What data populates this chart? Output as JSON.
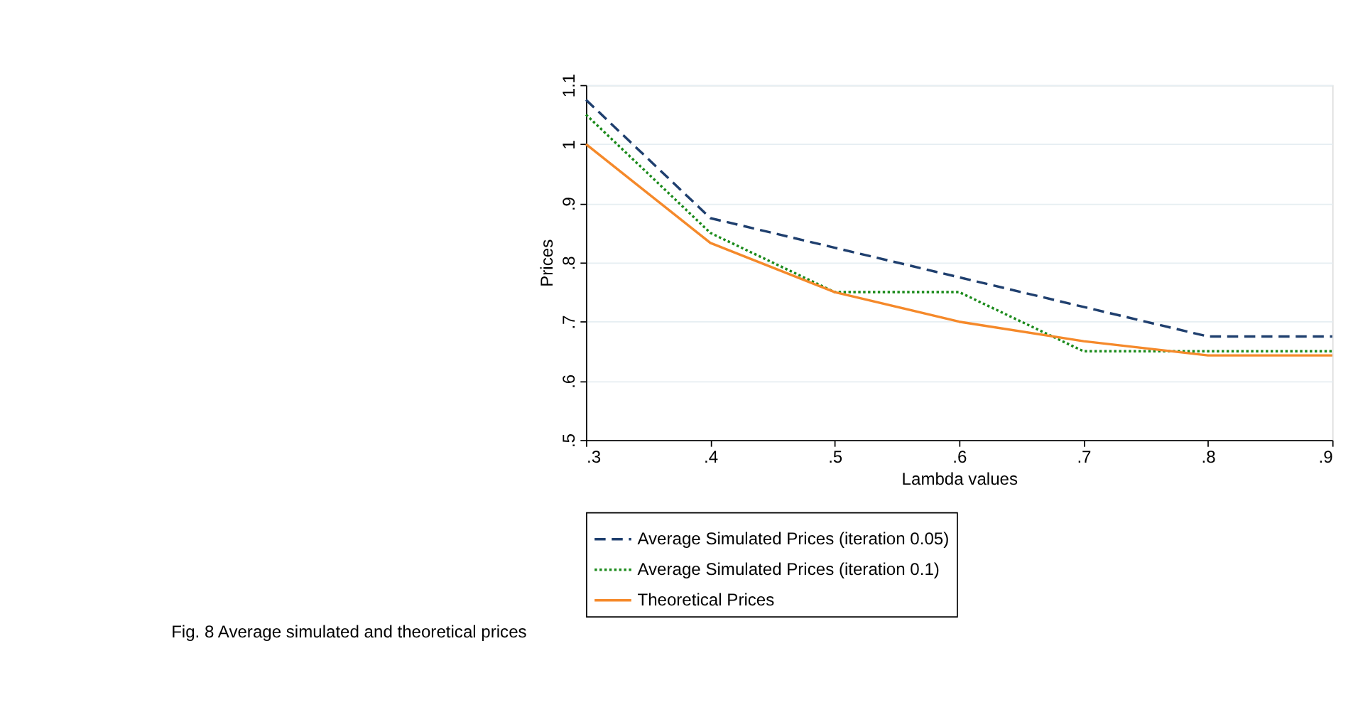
{
  "chart_data": {
    "type": "line",
    "xlabel": "Lambda values",
    "ylabel": "Prices",
    "x": [
      0.3,
      0.4,
      0.5,
      0.6,
      0.7,
      0.8,
      0.9
    ],
    "series": [
      {
        "name": "Average Simulated Prices (iteration 0.05)",
        "color": "#1f3f6e",
        "line_style": "dashed",
        "values": [
          1.075,
          0.875,
          0.825,
          0.775,
          0.725,
          0.675,
          0.675
        ]
      },
      {
        "name": "Average Simulated Prices (iteration 0.1)",
        "color": "#1a8a1a",
        "line_style": "dotted",
        "values": [
          1.05,
          0.85,
          0.75,
          0.75,
          0.65,
          0.65,
          0.65
        ]
      },
      {
        "name": "Theoretical Prices",
        "color": "#f5892a",
        "line_style": "solid",
        "values": [
          1.0,
          0.833,
          0.75,
          0.7,
          0.667,
          0.643,
          0.643
        ]
      }
    ],
    "xlim": [
      0.3,
      0.9
    ],
    "xticks": [
      {
        "value": 0.3,
        "label": ".3"
      },
      {
        "value": 0.4,
        "label": ".4"
      },
      {
        "value": 0.5,
        "label": ".5"
      },
      {
        "value": 0.6,
        "label": ".6"
      },
      {
        "value": 0.7,
        "label": ".7"
      },
      {
        "value": 0.8,
        "label": ".8"
      },
      {
        "value": 0.9,
        "label": ".9"
      }
    ],
    "ylim": [
      0.5,
      1.1
    ],
    "yticks": [
      {
        "value": 0.5,
        "label": ".5"
      },
      {
        "value": 0.6,
        "label": ".6"
      },
      {
        "value": 0.7,
        "label": ".7"
      },
      {
        "value": 0.8,
        "label": ".8"
      },
      {
        "value": 0.9,
        "label": ".9"
      },
      1,
      1.1
    ],
    "grid": "y",
    "legend": "bottom",
    "marker": "none",
    "annotations": [
      "Fig. 8  Average simulated and theoretical prices"
    ]
  }
}
